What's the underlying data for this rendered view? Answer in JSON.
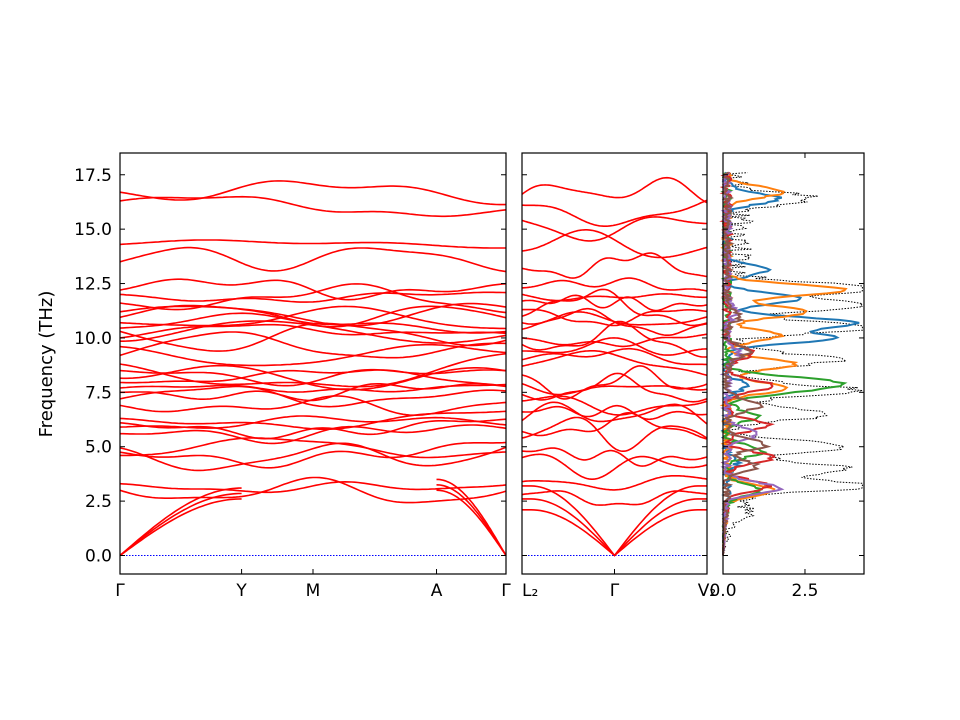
{
  "chart_data": {
    "type": "line",
    "title": "",
    "ylabel": "Frequency (THz)",
    "ylim": [
      -0.85,
      18.5
    ],
    "yticks": [
      "0.0",
      "2.5",
      "5.0",
      "7.5",
      "10.0",
      "12.5",
      "15.0",
      "17.5"
    ],
    "ytick_values": [
      0,
      2.5,
      5,
      7.5,
      10,
      12.5,
      15,
      17.5
    ],
    "band_color": "#ff0000",
    "zero_line_color": "#0000ff",
    "panels": [
      {
        "name": "band-panel-1",
        "xticks": [
          "Γ",
          "Y",
          "M",
          "A",
          "Γ"
        ],
        "xtick_positions": [
          0,
          0.315,
          0.5,
          0.82,
          1.0
        ],
        "acoustic_tops": [
          {
            "x": 0.315,
            "y": 3.1
          },
          {
            "x": 0.315,
            "y": 2.85
          },
          {
            "x": 0.315,
            "y": 2.6
          }
        ],
        "optical_band_start_values": [
          3.3,
          3.0,
          4.6,
          4.75,
          4.95,
          5.6,
          5.9,
          6.1,
          6.3,
          6.9,
          7.2,
          7.5,
          7.7,
          7.95,
          8.15,
          8.5,
          8.8,
          9.2,
          9.6,
          9.85,
          10.0,
          10.3,
          10.45,
          10.7,
          10.95,
          11.2,
          11.6,
          12.0,
          12.2,
          13.5,
          14.3,
          16.3,
          16.7
        ]
      },
      {
        "name": "band-panel-2",
        "xticks": [
          "L₂",
          "Γ",
          "V₂"
        ],
        "xtick_positions": [
          0,
          0.5,
          1.0
        ],
        "optical_band_start_values": [
          2.8,
          3.4,
          4.5,
          4.8,
          5.4,
          5.7,
          6.2,
          6.6,
          7.1,
          7.4,
          7.9,
          8.3,
          8.7,
          9.0,
          9.4,
          9.7,
          10.0,
          10.4,
          10.7,
          11.0,
          11.3,
          11.7,
          12.0,
          12.3,
          13.2,
          14.0,
          15.4,
          16.1,
          16.6
        ]
      }
    ],
    "dos_panel": {
      "name": "dos-panel",
      "xticks": [
        "0.0",
        "2.5"
      ],
      "xtick_values": [
        0,
        2.5
      ],
      "xlim": [
        0,
        4.3
      ],
      "total_dos_style": "dotted",
      "total_dos_color": "#000000",
      "series": [
        {
          "color": "#1f77b4",
          "peaks": [
            {
              "y": 16.4,
              "v": 1.6
            },
            {
              "y": 13.1,
              "v": 1.2
            },
            {
              "y": 11.8,
              "v": 2.2
            },
            {
              "y": 10.7,
              "v": 3.9
            },
            {
              "y": 10.0,
              "v": 3.2
            },
            {
              "y": 7.8,
              "v": 0.6
            },
            {
              "y": 4.2,
              "v": 0.3
            }
          ]
        },
        {
          "color": "#ff7f0e",
          "peaks": [
            {
              "y": 16.7,
              "v": 1.7
            },
            {
              "y": 12.2,
              "v": 3.7
            },
            {
              "y": 11.2,
              "v": 2.5
            },
            {
              "y": 10.1,
              "v": 1.6
            },
            {
              "y": 8.8,
              "v": 2.1
            },
            {
              "y": 7.7,
              "v": 1.8
            },
            {
              "y": 3.0,
              "v": 1.4
            }
          ]
        },
        {
          "color": "#2ca02c",
          "peaks": [
            {
              "y": 8.0,
              "v": 2.8
            },
            {
              "y": 7.6,
              "v": 1.9
            },
            {
              "y": 6.4,
              "v": 0.9
            },
            {
              "y": 4.8,
              "v": 1.1
            },
            {
              "y": 3.0,
              "v": 1.0
            }
          ]
        },
        {
          "color": "#d62728",
          "peaks": [
            {
              "y": 9.3,
              "v": 0.8
            },
            {
              "y": 7.8,
              "v": 1.4
            },
            {
              "y": 6.0,
              "v": 1.3
            },
            {
              "y": 4.5,
              "v": 1.4
            },
            {
              "y": 3.2,
              "v": 1.3
            }
          ]
        },
        {
          "color": "#9467bd",
          "peaks": [
            {
              "y": 11.2,
              "v": 0.3
            },
            {
              "y": 9.2,
              "v": 0.4
            },
            {
              "y": 5.6,
              "v": 1.0
            },
            {
              "y": 3.1,
              "v": 1.6
            }
          ]
        },
        {
          "color": "#8c564b",
          "peaks": [
            {
              "y": 11.0,
              "v": 0.4
            },
            {
              "y": 9.4,
              "v": 0.7
            },
            {
              "y": 6.9,
              "v": 1.0
            },
            {
              "y": 5.1,
              "v": 1.2
            },
            {
              "y": 4.1,
              "v": 0.9
            }
          ]
        }
      ],
      "total_peaks": [
        {
          "y": 16.4,
          "v": 2.4
        },
        {
          "y": 12.3,
          "v": 4.2
        },
        {
          "y": 11.5,
          "v": 4.1
        },
        {
          "y": 10.5,
          "v": 4.2
        },
        {
          "y": 9.0,
          "v": 3.2
        },
        {
          "y": 7.6,
          "v": 3.6
        },
        {
          "y": 6.5,
          "v": 3.0
        },
        {
          "y": 5.0,
          "v": 3.5
        },
        {
          "y": 4.0,
          "v": 3.4
        },
        {
          "y": 3.2,
          "v": 4.1
        },
        {
          "y": 2.0,
          "v": 0.5
        }
      ]
    }
  }
}
